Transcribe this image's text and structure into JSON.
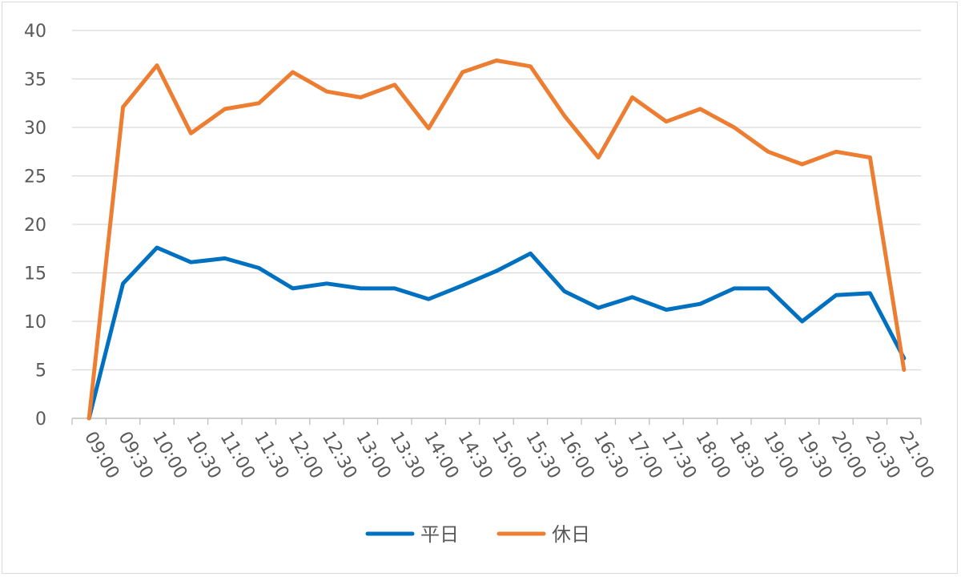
{
  "chart_data": {
    "type": "line",
    "title": "",
    "xlabel": "",
    "ylabel": "",
    "ylim": [
      0,
      40
    ],
    "y_ticks": [
      0,
      5,
      10,
      15,
      20,
      25,
      30,
      35,
      40
    ],
    "grid": "horizontal",
    "legend_position": "bottom",
    "categories": [
      "09:00",
      "09:30",
      "10:00",
      "10:30",
      "11:00",
      "11:30",
      "12:00",
      "12:30",
      "13:00",
      "13:30",
      "14:00",
      "14:30",
      "15:00",
      "15:30",
      "16:00",
      "16:30",
      "17:00",
      "17:30",
      "18:00",
      "18:30",
      "19:00",
      "19:30",
      "20:00",
      "20:30",
      "21:00"
    ],
    "series": [
      {
        "name": "平日",
        "color": "#0070C0",
        "values": [
          0,
          13.9,
          17.6,
          16.1,
          16.5,
          15.5,
          13.4,
          13.9,
          13.4,
          13.4,
          12.3,
          13.7,
          15.2,
          17.0,
          13.1,
          11.4,
          12.5,
          11.2,
          11.8,
          13.4,
          13.4,
          10.0,
          12.7,
          12.9,
          6.2
        ]
      },
      {
        "name": "休日",
        "color": "#ED7D31",
        "values": [
          0,
          32.1,
          36.4,
          29.4,
          31.9,
          32.5,
          35.7,
          33.7,
          33.1,
          34.4,
          29.9,
          35.7,
          36.9,
          36.3,
          31.2,
          26.9,
          33.1,
          30.6,
          31.9,
          30.0,
          27.5,
          26.2,
          27.5,
          26.9,
          5.0
        ]
      }
    ]
  }
}
